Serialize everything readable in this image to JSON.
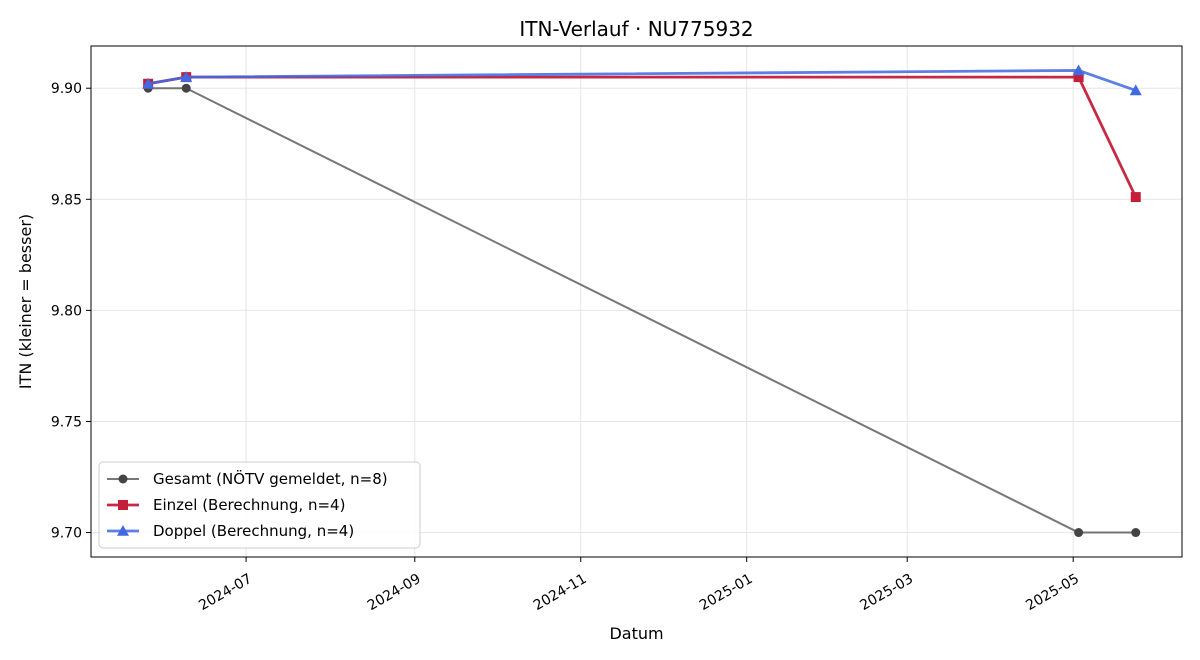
{
  "chart_data": {
    "type": "line",
    "title": "ITN-Verlauf · NU775932",
    "xlabel": "Datum",
    "ylabel": "ITN  (kleiner = besser)",
    "x_type": "date",
    "xlim": [
      "2024-05-05",
      "2025-06-10"
    ],
    "ylim": [
      9.689,
      9.919
    ],
    "x_ticks": [
      "2024-07-01",
      "2024-09-01",
      "2024-11-01",
      "2025-01-01",
      "2025-03-01",
      "2025-05-01"
    ],
    "x_tick_labels": [
      "2024-07",
      "2024-09",
      "2024-11",
      "2025-01",
      "2025-03",
      "2025-05"
    ],
    "y_ticks": [
      9.7,
      9.75,
      9.8,
      9.85,
      9.9
    ],
    "y_tick_labels": [
      "9.70",
      "9.75",
      "9.80",
      "9.85",
      "9.90"
    ],
    "grid": true,
    "legend_position": "lower-left",
    "series": [
      {
        "name": "Gesamt (NÖTV gemeldet, n=8)",
        "color": "#555555",
        "marker": "circle",
        "points": [
          {
            "x": "2024-05-26",
            "y": 9.9
          },
          {
            "x": "2024-06-09",
            "y": 9.9
          },
          {
            "x": "2025-05-03",
            "y": 9.7
          },
          {
            "x": "2025-05-24",
            "y": 9.7
          }
        ]
      },
      {
        "name": "Einzel (Berechnung, n=4)",
        "color": "#c41e3a",
        "marker": "square",
        "points": [
          {
            "x": "2024-05-26",
            "y": 9.902
          },
          {
            "x": "2024-06-09",
            "y": 9.905
          },
          {
            "x": "2025-05-03",
            "y": 9.905
          },
          {
            "x": "2025-05-24",
            "y": 9.851
          }
        ]
      },
      {
        "name": "Doppel (Berechnung, n=4)",
        "color": "#4169e1",
        "marker": "triangle",
        "points": [
          {
            "x": "2024-05-26",
            "y": 9.902
          },
          {
            "x": "2024-06-09",
            "y": 9.905
          },
          {
            "x": "2025-05-03",
            "y": 9.908
          },
          {
            "x": "2025-05-24",
            "y": 9.899
          }
        ]
      }
    ]
  }
}
